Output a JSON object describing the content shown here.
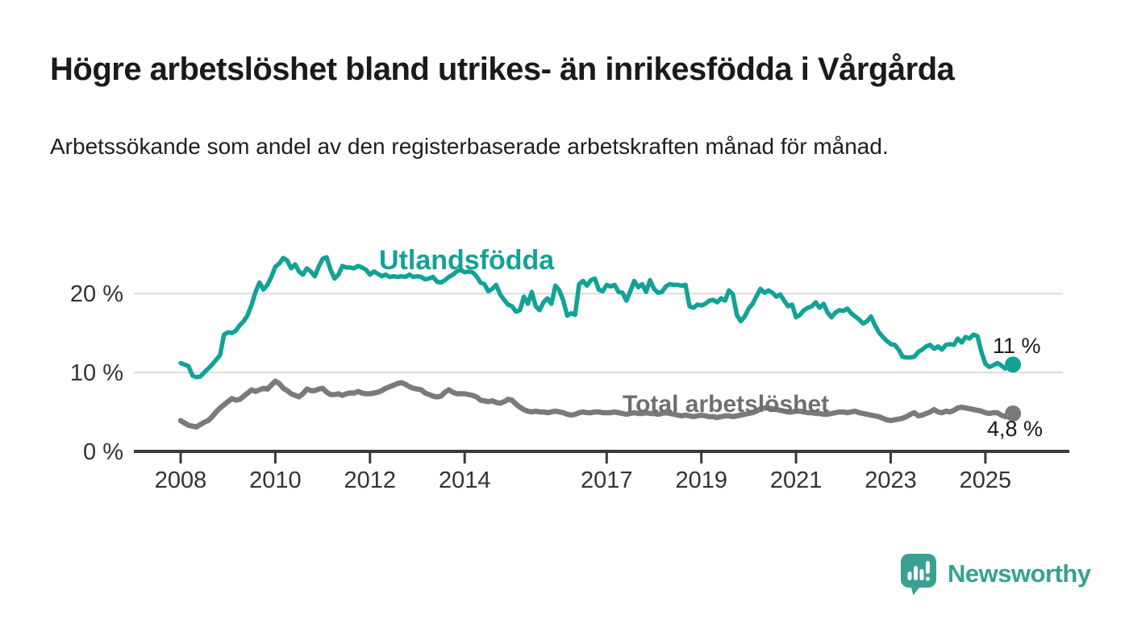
{
  "header": {
    "title": "Högre arbetslöshet bland utrikes- än inrikesfödda i Vårgårda",
    "subtitle": "Arbetssökande som andel av den registerbaserade arbetskraften månad för månad."
  },
  "chart_data": {
    "type": "line",
    "unit": "%",
    "frequency": "monthly",
    "x_start": "2008-01",
    "x_end": "2025-08",
    "ylim": [
      0,
      26
    ],
    "grid": "horizontal-only",
    "y_gridlines": [
      10,
      20
    ],
    "y_tick_values": [
      0,
      10,
      20
    ],
    "y_tick_labels": [
      "0 %",
      "10 %",
      "20 %"
    ],
    "x_tick_years": [
      2008,
      2010,
      2012,
      2014,
      2017,
      2019,
      2021,
      2023,
      2025
    ],
    "legend_position": "inline-labels",
    "series": [
      {
        "name": "Utlandsfödda",
        "color": "#12a296",
        "end_label": "11 %",
        "end_value": 11.0,
        "values": [
          11.2,
          11.0,
          10.8,
          9.6,
          9.4,
          9.5,
          10.0,
          10.5,
          11.0,
          11.6,
          12.2,
          14.8,
          15.1,
          15.0,
          15.3,
          16.0,
          16.5,
          17.3,
          18.6,
          20.2,
          21.4,
          20.5,
          21.1,
          22.1,
          23.4,
          23.8,
          24.5,
          24.2,
          23.2,
          23.7,
          22.8,
          22.4,
          23.2,
          22.8,
          22.2,
          23.4,
          24.4,
          24.6,
          23.0,
          21.9,
          22.4,
          23.5,
          23.3,
          23.3,
          23.2,
          23.5,
          23.3,
          23.0,
          22.4,
          22.8,
          22.5,
          22.2,
          22.4,
          22.1,
          22.2,
          22.1,
          22.2,
          22.1,
          22.4,
          22.1,
          22.2,
          22.1,
          21.8,
          21.9,
          22.1,
          21.5,
          21.4,
          21.7,
          22.1,
          22.4,
          22.8,
          23.0,
          22.7,
          22.8,
          22.7,
          22.2,
          21.4,
          21.2,
          20.3,
          20.6,
          21.1,
          19.9,
          19.2,
          18.6,
          18.4,
          17.7,
          17.9,
          19.6,
          18.7,
          20.2,
          18.4,
          17.9,
          18.9,
          19.4,
          18.7,
          21.0,
          20.4,
          19.1,
          17.2,
          17.5,
          17.3,
          21.2,
          21.6,
          21.0,
          21.7,
          21.9,
          20.5,
          20.3,
          21.1,
          20.9,
          21.1,
          20.2,
          20.1,
          19.1,
          20.3,
          21.6,
          20.8,
          21.2,
          20.2,
          21.7,
          20.6,
          20.1,
          20.2,
          20.9,
          21.2,
          21.1,
          21.1,
          21.0,
          21.1,
          18.4,
          18.2,
          18.6,
          18.5,
          18.7,
          19.1,
          19.2,
          18.9,
          19.4,
          19.1,
          20.4,
          19.9,
          17.3,
          16.5,
          17.1,
          18.1,
          18.7,
          19.7,
          20.6,
          20.1,
          20.4,
          20.1,
          19.6,
          19.9,
          19.1,
          18.4,
          18.6,
          17.0,
          17.3,
          17.9,
          18.2,
          18.4,
          18.9,
          18.2,
          18.7,
          17.6,
          17.0,
          17.6,
          17.9,
          17.8,
          18.1,
          17.5,
          17.1,
          16.7,
          16.2,
          16.5,
          17.1,
          16.0,
          15.1,
          14.5,
          14.0,
          13.6,
          13.5,
          12.9,
          12.0,
          11.9,
          11.9,
          12.0,
          12.6,
          12.9,
          13.3,
          13.5,
          13.0,
          13.3,
          12.9,
          13.5,
          13.6,
          13.5,
          14.3,
          13.8,
          14.5,
          14.3,
          14.8,
          14.6,
          12.6,
          11.1,
          10.7,
          10.9,
          11.2,
          10.9,
          10.5,
          10.7,
          11.0
        ]
      },
      {
        "name": "Total arbetslöshet",
        "color": "#7a7a7a",
        "end_label": "4,8 %",
        "end_value": 4.8,
        "values": [
          3.9,
          3.6,
          3.3,
          3.2,
          3.1,
          3.4,
          3.7,
          3.9,
          4.4,
          5.0,
          5.5,
          5.9,
          6.3,
          6.7,
          6.5,
          6.6,
          7.0,
          7.4,
          7.8,
          7.6,
          7.8,
          8.0,
          7.9,
          8.4,
          8.9,
          8.6,
          8.0,
          7.7,
          7.3,
          7.1,
          6.9,
          7.3,
          7.9,
          7.7,
          7.7,
          7.9,
          8.0,
          7.5,
          7.2,
          7.2,
          7.3,
          7.1,
          7.3,
          7.4,
          7.4,
          7.6,
          7.4,
          7.3,
          7.3,
          7.4,
          7.5,
          7.7,
          8.0,
          8.2,
          8.4,
          8.6,
          8.7,
          8.5,
          8.2,
          8.0,
          7.9,
          7.8,
          7.4,
          7.2,
          7.0,
          6.9,
          7.0,
          7.5,
          7.8,
          7.5,
          7.3,
          7.3,
          7.3,
          7.2,
          7.1,
          6.9,
          6.5,
          6.4,
          6.3,
          6.4,
          6.2,
          6.1,
          6.3,
          6.6,
          6.5,
          6.0,
          5.6,
          5.3,
          5.1,
          5.0,
          5.1,
          5.0,
          5.0,
          4.9,
          5.0,
          5.1,
          5.0,
          4.9,
          4.7,
          4.6,
          4.7,
          4.9,
          5.0,
          4.9,
          4.9,
          5.0,
          5.0,
          4.9,
          4.9,
          4.9,
          5.0,
          4.9,
          4.8,
          4.7,
          4.8,
          4.9,
          4.8,
          4.8,
          4.9,
          4.8,
          4.8,
          4.7,
          4.8,
          4.9,
          4.8,
          4.7,
          4.6,
          4.5,
          4.6,
          4.5,
          4.4,
          4.5,
          4.6,
          4.5,
          4.4,
          4.4,
          4.3,
          4.4,
          4.5,
          4.5,
          4.4,
          4.5,
          4.6,
          4.7,
          4.8,
          4.9,
          5.1,
          5.4,
          5.5,
          5.5,
          5.4,
          5.3,
          5.2,
          5.1,
          5.0,
          5.0,
          5.1,
          5.1,
          5.0,
          4.9,
          4.9,
          4.8,
          4.8,
          4.7,
          4.7,
          4.8,
          4.9,
          5.0,
          5.0,
          4.9,
          5.0,
          5.1,
          4.9,
          4.8,
          4.7,
          4.6,
          4.5,
          4.4,
          4.2,
          4.0,
          3.9,
          4.0,
          4.1,
          4.2,
          4.4,
          4.7,
          4.9,
          4.5,
          4.6,
          4.8,
          5.0,
          5.3,
          5.0,
          4.9,
          5.1,
          5.0,
          5.2,
          5.5,
          5.6,
          5.5,
          5.4,
          5.3,
          5.2,
          5.1,
          4.9,
          4.8,
          4.9,
          4.9,
          4.6,
          4.4,
          4.5,
          4.8
        ]
      }
    ],
    "style": {
      "gridline_color": "#dbdbdb",
      "axis_color": "#3a3a3a",
      "tick_label_color": "#333333"
    }
  },
  "branding": {
    "name": "Newsworthy",
    "icon": "bar-chart-speech-bubble-icon",
    "color": "#36a191"
  }
}
